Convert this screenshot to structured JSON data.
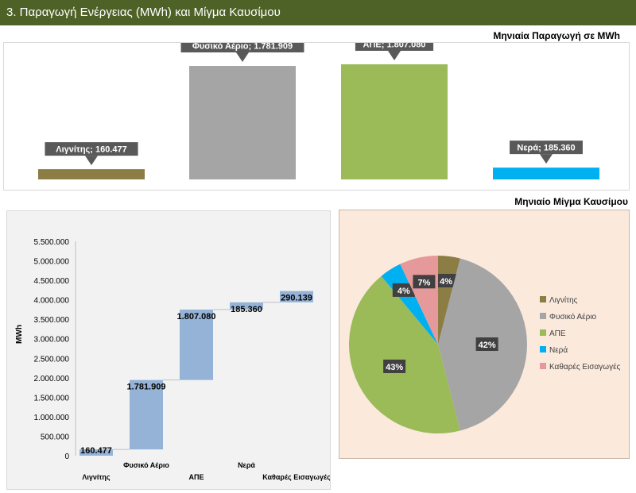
{
  "header": {
    "title": "3. Παραγωγή Ενέργειας (MWh) και Μίγμα Καυσίμου"
  },
  "chart_data": [
    {
      "type": "bar",
      "title": "Μηνιαία Παραγωγή σε MWh",
      "categories": [
        "Λιγνίτης",
        "Φυσικό Αέριο",
        "ΑΠΕ",
        "Νερά"
      ],
      "values": [
        160477,
        1781909,
        1807080,
        185360
      ],
      "data_labels": [
        "Λιγνίτης; 160.477",
        "Φυσικό Αέριο; 1.781.909",
        "ΑΠΕ; 1.807.080",
        "Νερά; 185.360"
      ],
      "colors": [
        "#8b7d44",
        "#a5a5a5",
        "#9bbb59",
        "#00b0f0"
      ],
      "grid": false
    },
    {
      "type": "bar",
      "subtype": "waterfall",
      "ylabel": "MWh",
      "ylim": [
        0,
        5500000
      ],
      "yticks": [
        0,
        500000,
        1000000,
        1500000,
        2000000,
        2500000,
        3000000,
        3500000,
        4000000,
        4500000,
        5000000,
        5500000
      ],
      "ytick_labels": [
        "0",
        "500.000",
        "1.000.000",
        "1.500.000",
        "2.000.000",
        "2.500.000",
        "3.000.000",
        "3.500.000",
        "4.000.000",
        "4.500.000",
        "5.000.000",
        "5.500.000"
      ],
      "categories": [
        "Λιγνίτης",
        "Φυσικό Αέριο",
        "ΑΠΕ",
        "Νερά",
        "Καθαρές Εισαγωγές"
      ],
      "values": [
        160477,
        1781909,
        1807080,
        185360,
        290139
      ],
      "data_labels": [
        "160.477",
        "1.781.909",
        "1.807.080",
        "185.360",
        "290.139"
      ],
      "color": "#95b3d7",
      "grid": false
    },
    {
      "type": "pie",
      "title": "Μηνιαίο Μίγμα Καυσίμου",
      "categories": [
        "Λιγνίτης",
        "Φυσικό Αέριο",
        "ΑΠΕ",
        "Νερά",
        "Καθαρές Εισαγωγές"
      ],
      "values": [
        4,
        42,
        43,
        4,
        7
      ],
      "data_labels": [
        "4%",
        "42%",
        "43%",
        "4%",
        "7%"
      ],
      "colors": [
        "#8b7d44",
        "#a5a5a5",
        "#9bbb59",
        "#00b0f0",
        "#e6999b"
      ],
      "legend": "right",
      "background": "#fbe9dc"
    }
  ]
}
